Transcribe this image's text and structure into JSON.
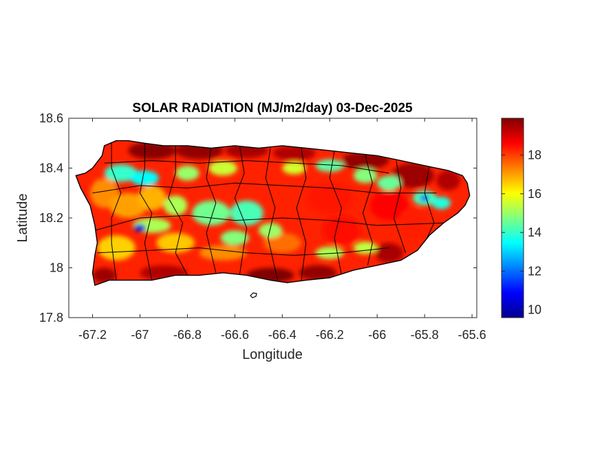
{
  "chart_data": {
    "type": "heatmap",
    "title": "SOLAR RADIATION (MJ/m2/day) 03-Dec-2025",
    "xlabel": "Longitude",
    "ylabel": "Latitude",
    "xlim": [
      -67.3,
      -65.58
    ],
    "ylim": [
      17.8,
      18.6
    ],
    "xticks": [
      -67.2,
      -67,
      -66.8,
      -66.6,
      -66.4,
      -66.2,
      -66,
      -65.8,
      -65.6
    ],
    "xtick_labels": [
      "-67.2",
      "-67",
      "-66.8",
      "-66.6",
      "-66.4",
      "-66.2",
      "-66",
      "-65.8",
      "-65.6"
    ],
    "yticks": [
      17.8,
      18,
      18.2,
      18.4,
      18.6
    ],
    "ytick_labels": [
      "17.8",
      "18",
      "18.2",
      "18.4",
      "18.6"
    ],
    "colorbar": {
      "colormap": "jet",
      "range": [
        9.6,
        19.9
      ],
      "ticks": [
        10,
        12,
        14,
        16,
        18
      ],
      "tick_labels": [
        "10",
        "12",
        "14",
        "16",
        "18"
      ]
    },
    "colors": {
      "outline": "#000000",
      "axes": "#262626"
    },
    "field_summary": {
      "coastal_band": 19.3,
      "northern_interior_band": 14.2,
      "central_mountains": 14.6,
      "southern_coast": 19.5,
      "eastern_interior": 18.2,
      "southwest_minimum": 10.5,
      "northeast_minimum": 11.5
    }
  }
}
